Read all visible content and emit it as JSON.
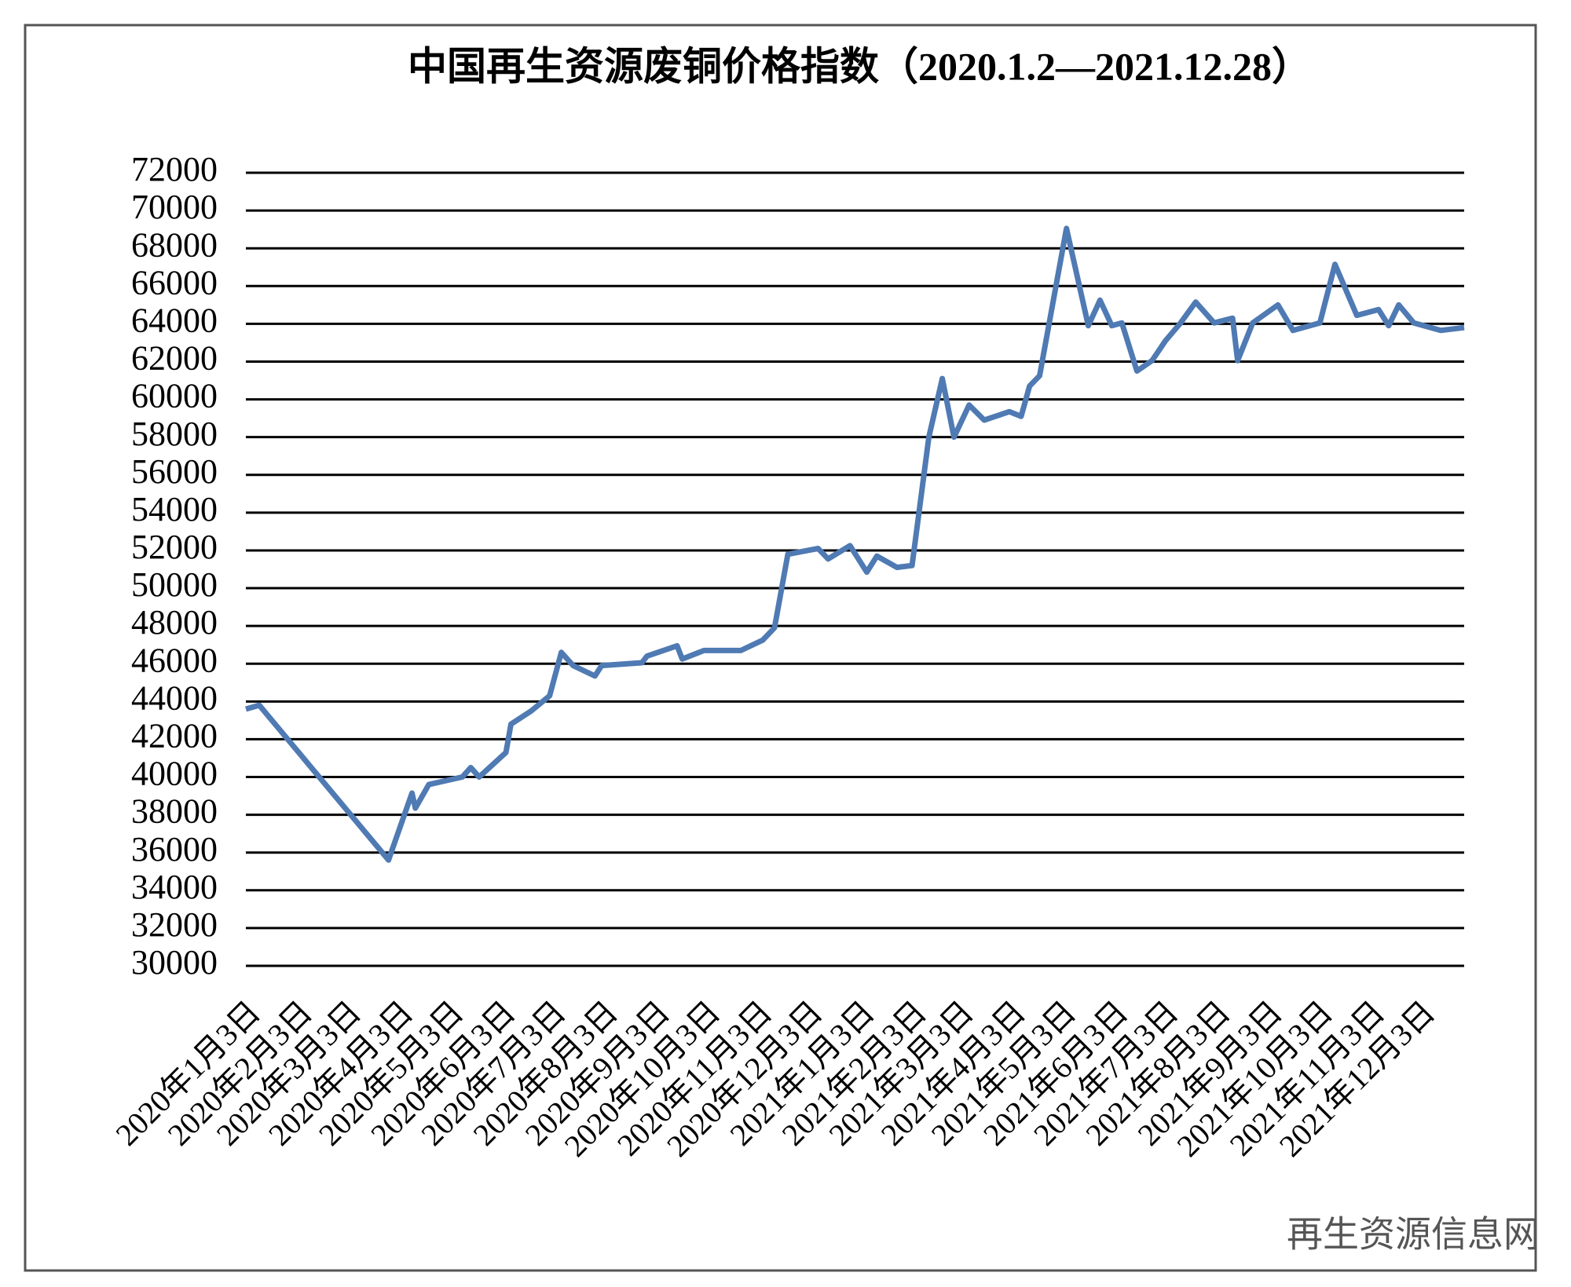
{
  "chart_data": {
    "type": "line",
    "title": "中国再生资源废铜价格指数（2020.1.2—2021.12.28）",
    "watermark": "再生资源信息网",
    "xlim": [
      "2020-01-02",
      "2021-12-28"
    ],
    "xticks": [
      {
        "value": "2020-01-03",
        "label": "2020年1月3日"
      },
      {
        "value": "2020-02-03",
        "label": "2020年2月3日"
      },
      {
        "value": "2020-03-03",
        "label": "2020年3月3日"
      },
      {
        "value": "2020-04-03",
        "label": "2020年4月3日"
      },
      {
        "value": "2020-05-03",
        "label": "2020年5月3日"
      },
      {
        "value": "2020-06-03",
        "label": "2020年6月3日"
      },
      {
        "value": "2020-07-03",
        "label": "2020年7月3日"
      },
      {
        "value": "2020-08-03",
        "label": "2020年8月3日"
      },
      {
        "value": "2020-09-03",
        "label": "2020年9月3日"
      },
      {
        "value": "2020-10-03",
        "label": "2020年10月3日"
      },
      {
        "value": "2020-11-03",
        "label": "2020年11月3日"
      },
      {
        "value": "2020-12-03",
        "label": "2020年12月3日"
      },
      {
        "value": "2021-01-03",
        "label": "2021年1月3日"
      },
      {
        "value": "2021-02-03",
        "label": "2021年2月3日"
      },
      {
        "value": "2021-03-03",
        "label": "2021年3月3日"
      },
      {
        "value": "2021-04-03",
        "label": "2021年4月3日"
      },
      {
        "value": "2021-05-03",
        "label": "2021年5月3日"
      },
      {
        "value": "2021-06-03",
        "label": "2021年6月3日"
      },
      {
        "value": "2021-07-03",
        "label": "2021年7月3日"
      },
      {
        "value": "2021-08-03",
        "label": "2021年8月3日"
      },
      {
        "value": "2021-09-03",
        "label": "2021年9月3日"
      },
      {
        "value": "2021-10-03",
        "label": "2021年10月3日"
      },
      {
        "value": "2021-11-03",
        "label": "2021年11月3日"
      },
      {
        "value": "2021-12-03",
        "label": "2021年12月3日"
      }
    ],
    "ylim": [
      30000,
      72000
    ],
    "yticks": [
      30000,
      32000,
      34000,
      36000,
      38000,
      40000,
      42000,
      44000,
      46000,
      48000,
      50000,
      52000,
      54000,
      56000,
      58000,
      60000,
      62000,
      64000,
      66000,
      68000,
      70000,
      72000
    ],
    "grid": true,
    "series": [
      {
        "color": "#4f7ab3",
        "x": [
          "2020-01-02",
          "2020-01-10",
          "2020-03-27",
          "2020-04-10",
          "2020-04-12",
          "2020-04-20",
          "2020-05-10",
          "2020-05-15",
          "2020-05-20",
          "2020-06-05",
          "2020-06-08",
          "2020-06-20",
          "2020-07-01",
          "2020-07-08",
          "2020-07-15",
          "2020-07-28",
          "2020-08-01",
          "2020-08-25",
          "2020-08-28",
          "2020-09-15",
          "2020-09-18",
          "2020-10-01",
          "2020-10-23",
          "2020-11-05",
          "2020-11-12",
          "2020-11-20",
          "2020-12-08",
          "2020-12-14",
          "2020-12-27",
          "2021-01-06",
          "2021-01-12",
          "2021-01-24",
          "2021-02-02",
          "2021-02-12",
          "2021-02-20",
          "2021-02-27",
          "2021-03-08",
          "2021-03-17",
          "2021-04-01",
          "2021-04-08",
          "2021-04-13",
          "2021-04-19",
          "2021-05-05",
          "2021-05-18",
          "2021-05-25",
          "2021-06-01",
          "2021-06-07",
          "2021-06-16",
          "2021-06-25",
          "2021-07-03",
          "2021-07-12",
          "2021-07-21",
          "2021-08-01",
          "2021-08-12",
          "2021-08-15",
          "2021-08-24",
          "2021-09-08",
          "2021-09-17",
          "2021-10-03",
          "2021-10-12",
          "2021-10-25",
          "2021-11-07",
          "2021-11-13",
          "2021-11-19",
          "2021-11-28",
          "2021-12-14",
          "2021-12-28"
        ],
        "values": [
          43600,
          43800,
          35600,
          39150,
          38350,
          39600,
          40000,
          40500,
          40000,
          41300,
          42800,
          43500,
          44300,
          46600,
          45900,
          45350,
          45900,
          46050,
          46400,
          46950,
          46250,
          46700,
          46700,
          47250,
          47900,
          51800,
          52100,
          51550,
          52250,
          50850,
          51700,
          51100,
          51200,
          58000,
          61100,
          58000,
          59700,
          58900,
          59350,
          59100,
          60700,
          61250,
          69050,
          63900,
          65250,
          63900,
          64050,
          61500,
          62050,
          63100,
          64050,
          65150,
          64050,
          64300,
          62050,
          64050,
          65000,
          63650,
          64050,
          67150,
          64450,
          64750,
          63900,
          65000,
          64050,
          63650,
          63800
        ]
      }
    ]
  }
}
